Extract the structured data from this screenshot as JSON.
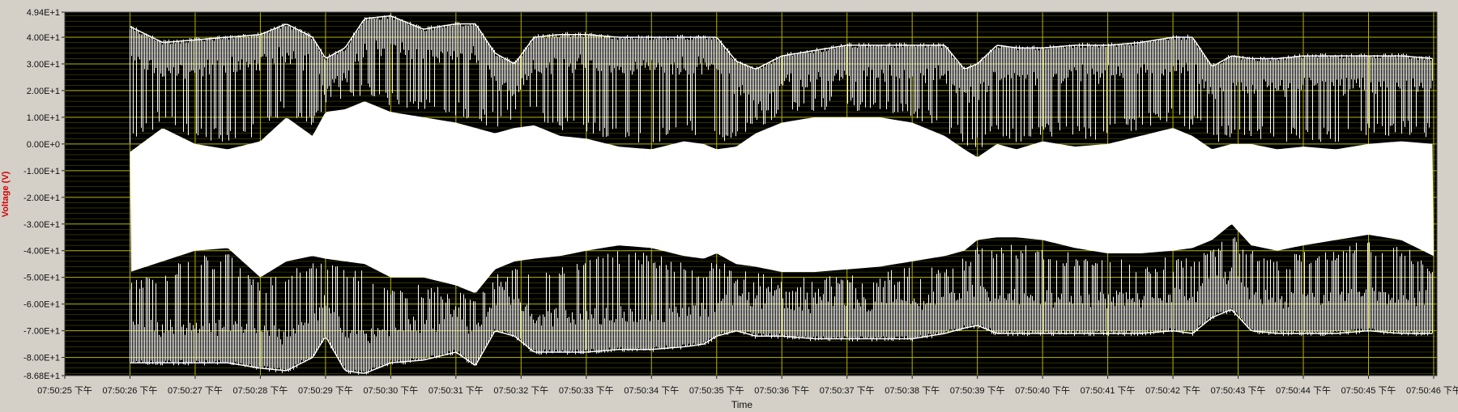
{
  "chart_data": {
    "type": "line",
    "title": "",
    "xlabel": "Time",
    "ylabel": "Voltage (V)",
    "ylim": [
      -86.8,
      49.4
    ],
    "y_ticks": [
      "4.94E+1",
      "4.00E+1",
      "3.00E+1",
      "2.00E+1",
      "1.00E+1",
      "0.00E+0",
      "-1.00E+1",
      "-2.00E+1",
      "-3.00E+1",
      "-4.00E+1",
      "-5.00E+1",
      "-6.00E+1",
      "-7.00E+1",
      "-8.00E+1",
      "-8.68E+1"
    ],
    "y_tick_values": [
      49.4,
      40,
      30,
      20,
      10,
      0,
      -10,
      -20,
      -30,
      -40,
      -50,
      -60,
      -70,
      -80,
      -86.8
    ],
    "x_ticks": [
      "07:50:25 下午",
      "07:50:26 下午",
      "07:50:27 下午",
      "07:50:28 下午",
      "07:50:29 下午",
      "07:50:30 下午",
      "07:50:31 下午",
      "07:50:32 下午",
      "07:50:33 下午",
      "07:50:34 下午",
      "07:50:35 下午",
      "07:50:36 下午",
      "07:50:37 下午",
      "07:50:38 下午",
      "07:50:39 下午",
      "07:50:40 下午",
      "07:50:41 下午",
      "07:50:42 下午",
      "07:50:43 下午",
      "07:50:44 下午",
      "07:50:45 下午",
      "07:50:46 下午"
    ],
    "x_range_seconds": [
      25,
      46.05
    ],
    "signal_start_second": 26,
    "grid": true,
    "colors": {
      "plot_background": "#000000",
      "grid": "#b5b500",
      "trace": "#ffffff",
      "axis_label": "#d40000",
      "panel": "#d4d0c8"
    },
    "series": [
      {
        "envelope_seconds": [
          26.0,
          26.5,
          27.0,
          27.5,
          28.0,
          28.4,
          28.8,
          29.0,
          29.3,
          29.6,
          30.0,
          30.5,
          31.0,
          31.3,
          31.6,
          31.9,
          32.2,
          32.6,
          33.0,
          33.5,
          34.0,
          34.5,
          34.8,
          35.0,
          35.3,
          35.6,
          36.0,
          36.5,
          37.0,
          37.5,
          38.0,
          38.5,
          38.8,
          39.0,
          39.3,
          39.6,
          40.0,
          40.5,
          41.0,
          41.5,
          42.0,
          42.3,
          42.6,
          42.9,
          43.2,
          43.6,
          44.0,
          44.5,
          45.0,
          45.5,
          46.0
        ],
        "upper_envelope": [
          44,
          38,
          39,
          40,
          41,
          45,
          40,
          32,
          36,
          47,
          48,
          43,
          45,
          45,
          34,
          30,
          40,
          41,
          41,
          40,
          40,
          40,
          40,
          40,
          31,
          28,
          33,
          35,
          37,
          37,
          37,
          37,
          28,
          30,
          37,
          36,
          36,
          37,
          37,
          38,
          40,
          40,
          29,
          33,
          32,
          32,
          33,
          33,
          33,
          33,
          32
        ],
        "upper_trough": [
          -1,
          8,
          2,
          0,
          3,
          12,
          5,
          14,
          15,
          18,
          14,
          12,
          10,
          8,
          6,
          8,
          9,
          5,
          4,
          1,
          0,
          3,
          2,
          0,
          1,
          6,
          10,
          12,
          12,
          12,
          10,
          5,
          0,
          -3,
          2,
          0,
          3,
          1,
          2,
          5,
          8,
          5,
          0,
          2,
          2,
          0,
          1,
          0,
          2,
          3,
          2
        ],
        "lower_envelope": [
          -82,
          -82,
          -82,
          -82,
          -84,
          -85,
          -80,
          -72,
          -85,
          -86,
          -82,
          -81,
          -78,
          -83,
          -70,
          -72,
          -78,
          -78,
          -78,
          -77,
          -77,
          -76,
          -75,
          -72,
          -70,
          -72,
          -72,
          -73,
          -73,
          -73,
          -73,
          -71,
          -69,
          -68,
          -71,
          -71,
          -71,
          -71,
          -71,
          -71,
          -70,
          -71,
          -65,
          -62,
          -70,
          -71,
          -71,
          -71,
          -70,
          -71,
          -71
        ],
        "lower_crest": [
          -50,
          -46,
          -42,
          -41,
          -52,
          -46,
          -44,
          -45,
          -46,
          -47,
          -52,
          -52,
          -55,
          -58,
          -49,
          -46,
          -45,
          -44,
          -42,
          -40,
          -41,
          -44,
          -45,
          -43,
          -47,
          -48,
          -50,
          -50,
          -49,
          -48,
          -46,
          -44,
          -42,
          -38,
          -37,
          -37,
          -38,
          -41,
          -43,
          -43,
          -42,
          -41,
          -38,
          -32,
          -40,
          -42,
          -40,
          -38,
          -36,
          -38,
          -44
        ]
      }
    ]
  }
}
